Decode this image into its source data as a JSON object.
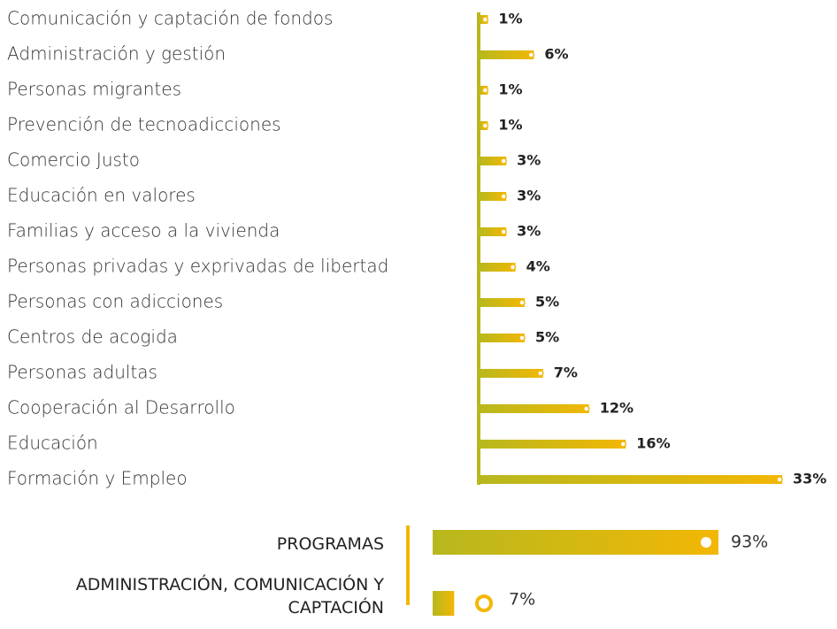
{
  "chart_data": [
    {
      "type": "bar",
      "categories": [
        "Comunicación y captación de fondos",
        "Administración y gestión",
        "Personas migrantes",
        "Prevención de tecnoadicciones",
        "Comercio Justo",
        "Educación en valores",
        "Familias y acceso a la vivienda",
        "Personas privadas y exprivadas de libertad",
        "Personas con adicciones",
        "Centros de acogida",
        "Personas adultas",
        "Cooperación al Desarrollo",
        "Educación",
        "Formación y Empleo"
      ],
      "values": [
        1,
        6,
        1,
        1,
        3,
        3,
        3,
        4,
        5,
        5,
        7,
        12,
        16,
        33
      ],
      "value_labels": [
        "1%",
        "6%",
        "1%",
        "1%",
        "3%",
        "3%",
        "3%",
        "4%",
        "5%",
        "5%",
        "7%",
        "12%",
        "16%",
        "33%"
      ],
      "color": "#f2b705"
    },
    {
      "type": "bar",
      "categories": [
        "PROGRAMAS",
        "ADMINISTRACIÓN, COMUNICACIÓN Y CAPTACIÓN"
      ],
      "values": [
        93,
        7
      ],
      "value_labels": [
        "93%",
        "7%"
      ],
      "color": "#f2b705"
    }
  ]
}
